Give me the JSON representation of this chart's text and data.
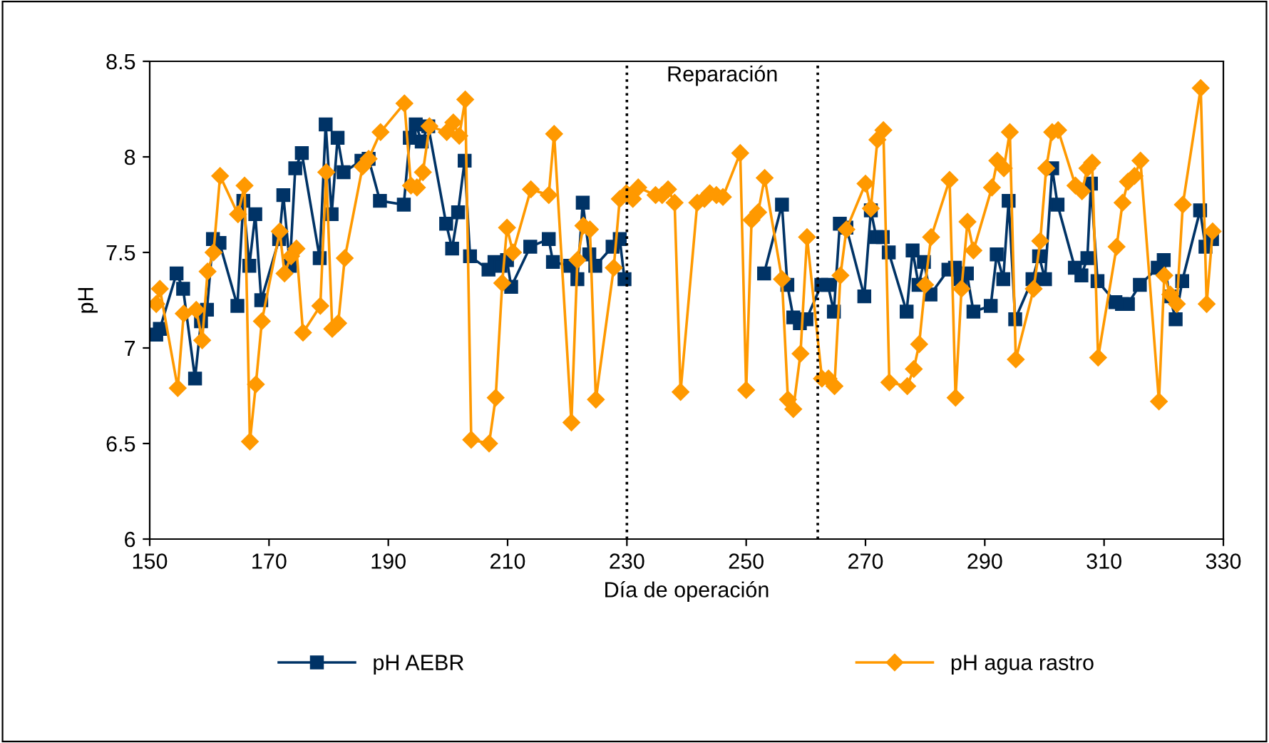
{
  "chart_data": {
    "type": "line",
    "xlabel": "Día de operación",
    "ylabel": "pH",
    "xlim": [
      150,
      330
    ],
    "xticks": [
      150,
      170,
      190,
      210,
      230,
      250,
      270,
      290,
      310,
      330
    ],
    "ylim": [
      6,
      8.5
    ],
    "yticks": [
      6,
      6.5,
      7,
      7.5,
      8,
      8.5
    ],
    "grid": false,
    "legend": "bottom",
    "line_style": "solid",
    "ref_lines": [
      {
        "axis": "x",
        "value": 230,
        "color": "#000000",
        "line_style": "dotted"
      },
      {
        "axis": "x",
        "value": 262,
        "color": "#000000",
        "line_style": "dotted"
      }
    ],
    "annotations": [
      "Reparación"
    ],
    "series": [
      {
        "name": "pH AEBR",
        "color": "#003366",
        "marker": "square",
        "x": [
          151.1,
          151.7,
          154.5,
          155.6,
          157.6,
          158.6,
          159.6,
          160.6,
          161.7,
          164.7,
          165.7,
          166.7,
          167.7,
          168.7,
          171.7,
          172.4,
          173.5,
          174.4,
          175.5,
          178.5,
          179.5,
          180.5,
          181.5,
          182.5,
          185.5,
          186.7,
          188.6,
          192.6,
          193.6,
          194.6,
          195.6,
          196.7,
          199.7,
          200.7,
          201.7,
          202.8,
          203.7,
          206.8,
          207.8,
          208.8,
          209.9,
          210.6,
          213.8,
          216.9,
          217.6,
          220.5,
          221.7,
          222.6,
          223.7,
          224.7,
          227.6,
          228.8,
          229.6,
          240,
          253.0,
          256.0,
          256.9,
          257.9,
          259.0,
          260.1,
          262.6,
          263.7,
          264.7,
          265.7,
          266.8,
          269.8,
          270.9,
          271.8,
          272.9,
          273.9,
          276.9,
          277.9,
          278.9,
          279.8,
          280.9,
          283.9,
          285.0,
          285.9,
          287.0,
          288.1,
          291.0,
          292.0,
          293.1,
          294.0,
          295.1,
          298.0,
          299.1,
          300.1,
          301.3,
          302.2,
          305.1,
          306.2,
          307.2,
          307.8,
          308.9,
          311.9,
          313.0,
          314.0,
          316.0,
          319.0,
          320.0,
          321.0,
          322.0,
          323.1,
          326.1,
          327.0,
          328.1
        ],
        "values": [
          7.07,
          7.1,
          7.39,
          7.31,
          6.84,
          7.14,
          7.2,
          7.57,
          7.55,
          7.22,
          7.77,
          7.43,
          7.7,
          7.25,
          7.57,
          7.8,
          7.43,
          7.94,
          8.02,
          7.47,
          8.17,
          7.7,
          8.1,
          7.92,
          7.98,
          7.99,
          7.77,
          7.75,
          8.1,
          8.17,
          8.08,
          8.16,
          7.65,
          7.52,
          7.71,
          7.98,
          7.48,
          7.41,
          7.45,
          7.43,
          7.46,
          7.32,
          7.53,
          7.57,
          7.45,
          7.43,
          7.36,
          7.76,
          7.49,
          7.43,
          7.53,
          7.57,
          7.36,
          null,
          7.39,
          7.75,
          7.33,
          7.16,
          7.13,
          7.15,
          7.33,
          7.33,
          7.19,
          7.65,
          7.63,
          7.27,
          7.72,
          7.58,
          7.58,
          7.5,
          7.19,
          7.51,
          7.33,
          7.45,
          7.28,
          7.41,
          7.42,
          7.36,
          7.39,
          7.19,
          7.22,
          7.49,
          7.36,
          7.77,
          7.15,
          7.36,
          7.48,
          7.36,
          7.94,
          7.75,
          7.42,
          7.38,
          7.47,
          7.86,
          7.35,
          7.24,
          7.23,
          7.23,
          7.33,
          7.42,
          7.46,
          7.27,
          7.15,
          7.35,
          7.72,
          7.53,
          7.57
        ]
      },
      {
        "name": "pH agua rastro",
        "color": "#FF9900",
        "marker": "diamond",
        "x": [
          151.1,
          151.7,
          154.7,
          155.7,
          157.8,
          158.8,
          159.7,
          160.7,
          161.8,
          164.8,
          165.9,
          166.8,
          167.8,
          168.8,
          171.8,
          172.6,
          173.7,
          174.6,
          175.7,
          178.6,
          179.6,
          180.6,
          181.6,
          182.7,
          185.7,
          186.7,
          188.7,
          192.7,
          193.8,
          194.8,
          195.8,
          196.9,
          199.8,
          200.9,
          201.9,
          202.9,
          203.9,
          206.9,
          208.0,
          209.1,
          209.9,
          210.9,
          213.9,
          216.9,
          217.8,
          220.7,
          221.7,
          222.7,
          223.8,
          224.8,
          227.8,
          228.8,
          229.9,
          231.0,
          231.9,
          234.8,
          235.9,
          236.9,
          238.0,
          239.0,
          241.8,
          243.0,
          243.9,
          245.0,
          246.1,
          249.0,
          250.0,
          250.9,
          252.0,
          253.1,
          256.0,
          257.0,
          257.9,
          259.1,
          260.2,
          262.7,
          263.8,
          264.8,
          265.8,
          266.8,
          270.0,
          270.9,
          272.0,
          273.0,
          274.0,
          277.0,
          278.1,
          279.0,
          280.0,
          281.0,
          284.1,
          285.1,
          286.1,
          287.1,
          288.1,
          291.2,
          292.1,
          293.2,
          294.2,
          295.2,
          298.2,
          299.3,
          300.3,
          301.3,
          302.3,
          305.2,
          306.3,
          307.2,
          308.0,
          309.0,
          312.1,
          313.1,
          314.0,
          315.1,
          316.1,
          319.2,
          320.1,
          321.1,
          322.2,
          323.2,
          326.2,
          327.2,
          328.2
        ],
        "values": [
          7.23,
          7.31,
          6.79,
          7.18,
          7.2,
          7.04,
          7.4,
          7.5,
          7.9,
          7.7,
          7.85,
          6.51,
          6.81,
          7.14,
          7.61,
          7.39,
          7.48,
          7.52,
          7.08,
          7.22,
          7.92,
          7.1,
          7.13,
          7.47,
          7.95,
          7.99,
          8.13,
          8.28,
          7.85,
          7.84,
          7.92,
          8.16,
          8.13,
          8.18,
          8.11,
          8.3,
          6.52,
          6.5,
          6.74,
          7.34,
          7.63,
          7.5,
          7.83,
          7.8,
          8.12,
          6.61,
          7.46,
          7.64,
          7.62,
          6.73,
          7.42,
          7.78,
          7.81,
          7.78,
          7.84,
          7.8,
          7.8,
          7.83,
          7.76,
          6.77,
          7.76,
          7.78,
          7.81,
          7.8,
          7.79,
          8.02,
          6.78,
          7.67,
          7.71,
          7.89,
          7.36,
          6.73,
          6.68,
          6.97,
          7.58,
          6.84,
          6.84,
          6.8,
          7.38,
          7.62,
          7.86,
          7.73,
          8.09,
          8.14,
          6.82,
          6.8,
          6.89,
          7.02,
          7.33,
          7.58,
          7.88,
          6.74,
          7.31,
          7.66,
          7.51,
          7.84,
          7.98,
          7.94,
          8.13,
          6.94,
          7.31,
          7.56,
          7.94,
          8.13,
          8.14,
          7.85,
          7.82,
          7.94,
          7.97,
          6.95,
          7.53,
          7.76,
          7.87,
          7.9,
          7.98,
          6.72,
          7.38,
          7.28,
          7.23,
          7.75,
          8.36,
          7.23,
          7.61
        ]
      }
    ]
  }
}
